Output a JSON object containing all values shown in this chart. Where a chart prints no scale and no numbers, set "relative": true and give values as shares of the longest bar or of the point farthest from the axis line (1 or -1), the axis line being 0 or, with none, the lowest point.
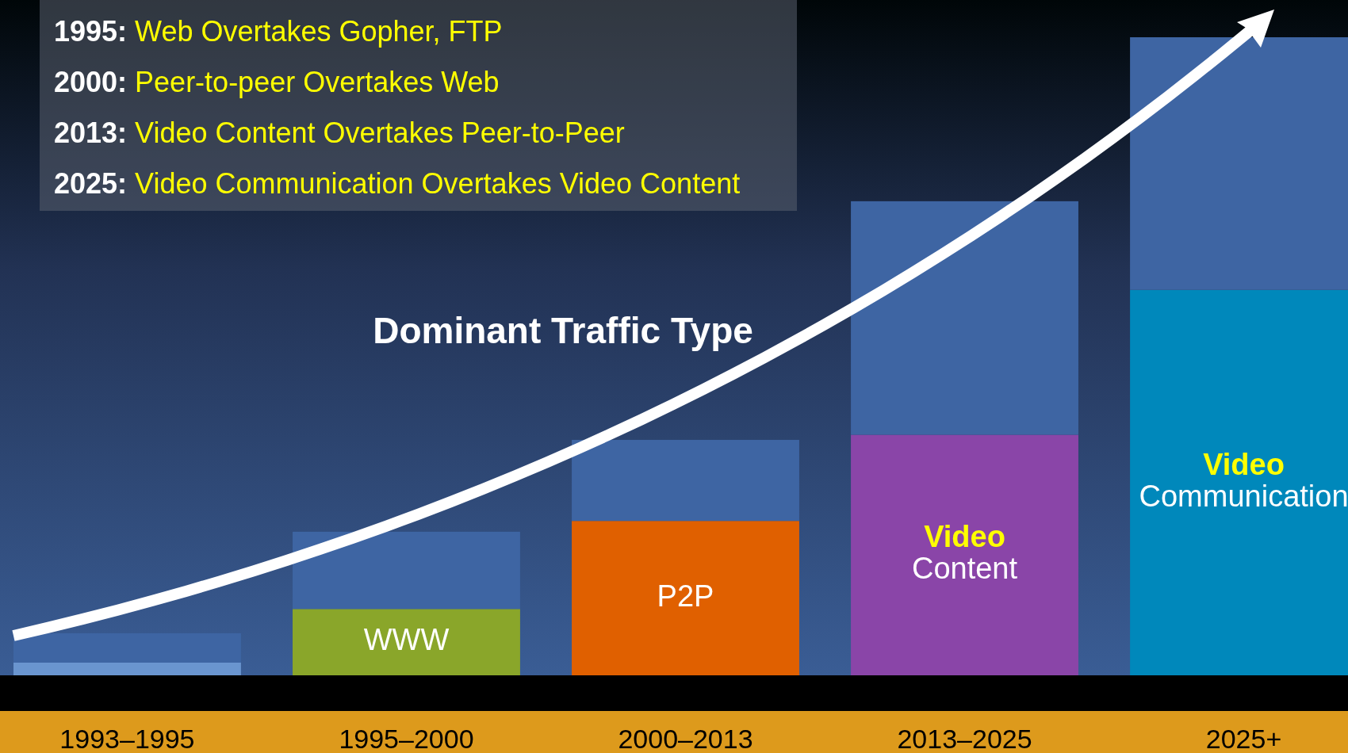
{
  "chart_data": {
    "type": "bar",
    "title": "Dominant Traffic Type",
    "stacked": true,
    "relative": true,
    "categories": [
      "1993–1995",
      "1995–2000",
      "2000–2013",
      "2013–2025",
      "2025+"
    ],
    "series": [
      {
        "colors": [
          "#6a95cf",
          "#8aa62a",
          "#e06000",
          "#8a45a8",
          "#0088bb"
        ],
        "values": [
          0.02,
          0.104,
          0.242,
          0.377,
          0.604
        ]
      },
      {
        "color": "#3e65a3",
        "values": [
          0.046,
          0.121,
          0.127,
          0.366,
          0.396
        ]
      }
    ],
    "annotations": [
      "1995: Web Overtakes Gopher, FTP",
      "2000: Peer-to-peer Overtakes Web",
      "2013: Video Content Overtakes Peer-to-Peer",
      "2025: Video Communication Overtakes Video Content",
      "WWW",
      "P2P",
      "Video Content",
      "Video Communication"
    ]
  }
}
